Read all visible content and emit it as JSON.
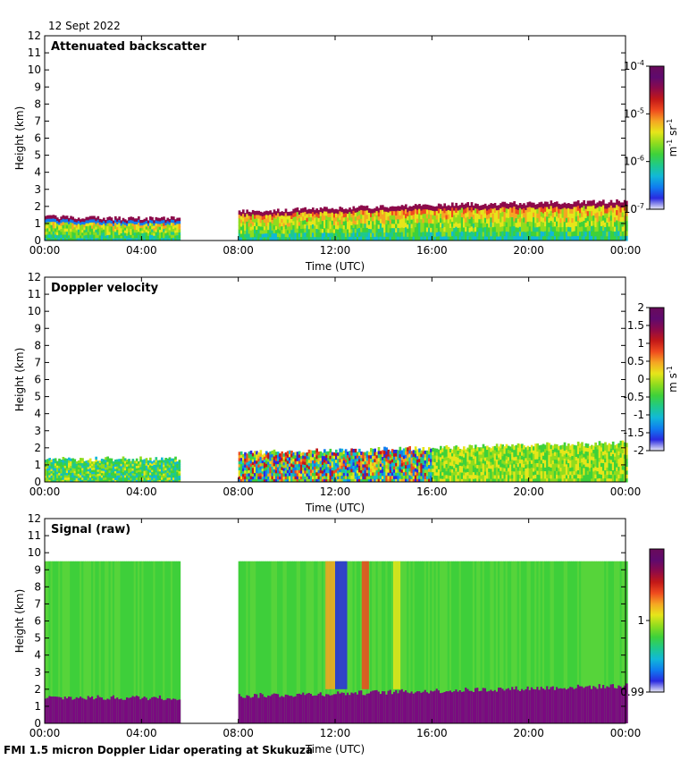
{
  "header": {
    "date": "12 Sept 2022"
  },
  "footer": {
    "caption": "FMI 1.5 micron Doppler Lidar operating at Skukuza"
  },
  "colors": {
    "ramp": [
      "#2a2ae0",
      "#0f7cf0",
      "#11b8d8",
      "#1fc98a",
      "#3ed13a",
      "#8fdc1e",
      "#e6e61a",
      "#f5a623",
      "#ef4a1e",
      "#c21818",
      "#8c0a4a",
      "#5e0a6e"
    ],
    "cbar_top": "#6a0a5a",
    "cbar_bottom": "#e8e8f5",
    "bg_signal": "#3ecf3a",
    "ground": "#7a0a80"
  },
  "chart_data": [
    {
      "type": "heatmap",
      "name": "backscatter",
      "title": "Attenuated backscatter",
      "xlabel": "Time (UTC)",
      "ylabel": "Height (km)",
      "xlim": [
        0,
        24
      ],
      "ylim": [
        0,
        12
      ],
      "xticks": [
        0,
        4,
        8,
        12,
        16,
        20,
        24
      ],
      "xticklabels": [
        "00:00",
        "04:00",
        "08:00",
        "12:00",
        "16:00",
        "20:00",
        "00:00"
      ],
      "yticks": [
        0,
        1,
        2,
        3,
        4,
        5,
        6,
        7,
        8,
        9,
        10,
        11,
        12
      ],
      "data_gaps_hours": [
        [
          5.55,
          8.0
        ]
      ],
      "boundary_layer_top_km": [
        [
          0,
          1.4
        ],
        [
          2.5,
          1.3
        ],
        [
          3.5,
          1.3
        ],
        [
          5.5,
          1.3
        ],
        [
          8.0,
          1.7
        ],
        [
          12,
          1.9
        ],
        [
          16,
          2.1
        ],
        [
          20,
          2.2
        ],
        [
          24,
          2.3
        ]
      ],
      "colorbar": {
        "ticks": [
          1e-07,
          1e-06,
          1e-05,
          0.0001
        ],
        "ticklabels": [
          "10",
          "10",
          "10",
          "10"
        ],
        "tick_exponents": [
          "-7",
          "-6",
          "-5",
          "-4"
        ],
        "unit_base": "m",
        "unit_exp1": "-1",
        "unit_mid": " sr",
        "unit_exp2": "-1",
        "scale": "log"
      }
    },
    {
      "type": "heatmap",
      "name": "velocity",
      "title": "Doppler velocity",
      "xlabel": "Time (UTC)",
      "ylabel": "Height (km)",
      "xlim": [
        0,
        24
      ],
      "ylim": [
        0,
        12
      ],
      "xticks": [
        0,
        4,
        8,
        12,
        16,
        20,
        24
      ],
      "xticklabels": [
        "00:00",
        "04:00",
        "08:00",
        "12:00",
        "16:00",
        "20:00",
        "00:00"
      ],
      "yticks": [
        0,
        1,
        2,
        3,
        4,
        5,
        6,
        7,
        8,
        9,
        10,
        11,
        12
      ],
      "data_gaps_hours": [
        [
          5.55,
          8.0
        ]
      ],
      "colorbar": {
        "ticks": [
          -2,
          -1.5,
          -1,
          -0.5,
          0,
          0.5,
          1,
          1.5,
          2
        ],
        "ticklabels": [
          "-2",
          "-1.5",
          "-1",
          "-0.5",
          "0",
          "0.5",
          "1",
          "1.5",
          "2"
        ],
        "unit_base": "m s",
        "unit_exp1": "-1",
        "vmin": -2,
        "vmax": 2
      }
    },
    {
      "type": "heatmap",
      "name": "signal",
      "title": "Signal (raw)",
      "xlabel": "Time (UTC)",
      "ylabel": "Height (km)",
      "xlim": [
        0,
        24
      ],
      "ylim": [
        0,
        12
      ],
      "xticks": [
        0,
        4,
        8,
        12,
        16,
        20,
        24
      ],
      "xticklabels": [
        "00:00",
        "04:00",
        "08:00",
        "12:00",
        "16:00",
        "20:00",
        "00:00"
      ],
      "yticks": [
        0,
        1,
        2,
        3,
        4,
        5,
        6,
        7,
        8,
        9,
        10,
        11,
        12
      ],
      "data_gaps_hours": [
        [
          5.55,
          8.0
        ]
      ],
      "max_range_km": 9.5,
      "colorbar": {
        "ticks": [
          0.99,
          1
        ],
        "ticklabels": [
          "0.99",
          "1"
        ],
        "vmin": 0.99,
        "vmax": 1.01
      }
    }
  ]
}
